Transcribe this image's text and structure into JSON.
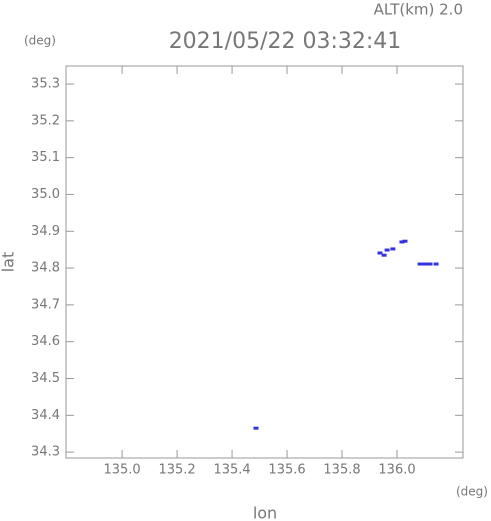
{
  "chart_data": {
    "type": "scatter",
    "title": "2021/05/22 03:32:41",
    "annotation": "ALT(km) 2.0",
    "y_unit": "(deg)",
    "x_unit": "(deg)",
    "x_label": "lon",
    "y_label": "lat",
    "xlim": [
      134.796,
      136.24
    ],
    "ylim": [
      34.284,
      35.349
    ],
    "xticks": [
      {
        "value": 135,
        "label": "135.0"
      },
      135.2,
      135.4,
      135.6,
      135.8,
      {
        "value": 136,
        "label": "136.0"
      }
    ],
    "yticks": [
      34.3,
      34.4,
      34.5,
      34.6,
      34.7,
      34.8,
      34.9,
      {
        "value": 35,
        "label": "35.0"
      },
      35.1,
      35.2,
      35.3
    ],
    "color": "#3333dd",
    "x": [
      135.938,
      135.953,
      135.964,
      135.985,
      136.018,
      136.029,
      136.084,
      136.102,
      136.12,
      136.142,
      135.487
    ],
    "y": [
      34.841,
      34.835,
      34.849,
      34.852,
      34.871,
      34.873,
      34.811,
      34.811,
      34.811,
      34.811,
      34.365
    ]
  }
}
